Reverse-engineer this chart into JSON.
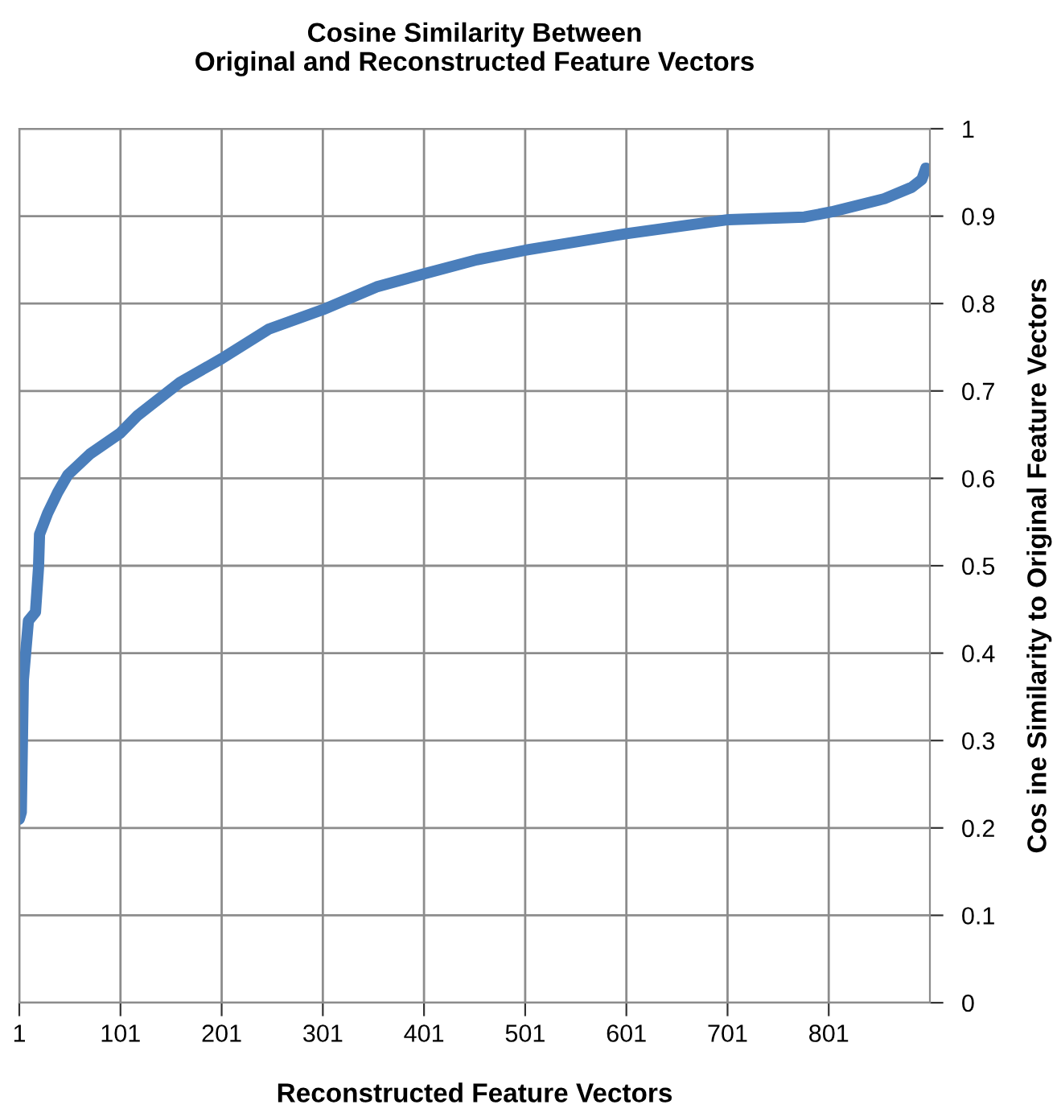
{
  "chart_data": {
    "type": "line",
    "title": "Cosine Similarity Between\nOriginal and Reconstructed Feature Vectors",
    "xlabel": "Reconstructed Feature Vectors",
    "ylabel": "Cos ine Similarity to Original Feature Vectors",
    "x": [
      1,
      3,
      5,
      10,
      17,
      20,
      21,
      29,
      39,
      49,
      71,
      101,
      118,
      160,
      201,
      248,
      301,
      354,
      401,
      453,
      501,
      601,
      702,
      777,
      804,
      856,
      883,
      893,
      897
    ],
    "series": [
      {
        "color": "#4a7ebb",
        "values": [
          0.21,
          0.218,
          0.369,
          0.437,
          0.447,
          0.498,
          0.536,
          0.56,
          0.584,
          0.604,
          0.628,
          0.652,
          0.672,
          0.71,
          0.737,
          0.771,
          0.793,
          0.819,
          0.834,
          0.85,
          0.861,
          0.88,
          0.896,
          0.899,
          0.905,
          0.92,
          0.933,
          0.942,
          0.955
        ]
      }
    ],
    "xlim": [
      1,
      901
    ],
    "xticks": [
      1,
      101,
      201,
      301,
      401,
      501,
      601,
      701,
      801
    ],
    "ylim": [
      0,
      1
    ],
    "yticks": [
      0,
      0.1,
      0.2,
      0.3,
      0.4,
      0.5,
      0.6,
      0.7,
      0.8,
      0.9,
      1
    ],
    "grid": true,
    "legend": false,
    "marker": "none",
    "line_style": "solid"
  }
}
